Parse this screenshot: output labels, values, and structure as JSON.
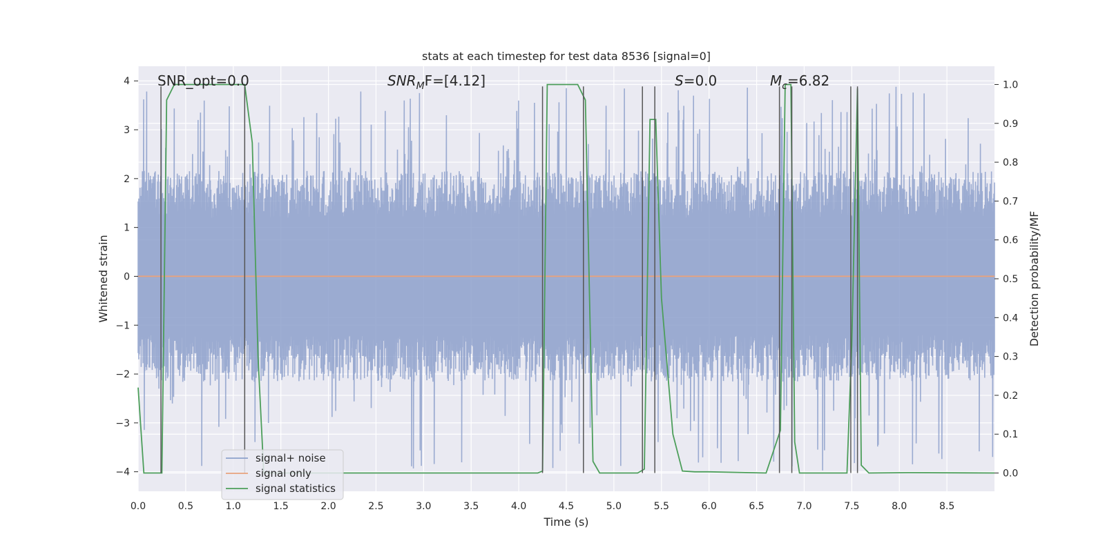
{
  "chart_data": {
    "type": "line",
    "title": "stats at each timestep for test data 8536 [signal=0]",
    "xlabel": "Time (s)",
    "ylabel": "Whitened strain",
    "y2label": "Detection probability/MF",
    "xlim": [
      0.0,
      9.0
    ],
    "ylim": [
      -4.4,
      4.3
    ],
    "y2lim": [
      -0.047,
      1.047
    ],
    "x_ticks": [
      0.0,
      0.5,
      1.0,
      1.5,
      2.0,
      2.5,
      3.0,
      3.5,
      4.0,
      4.5,
      5.0,
      5.5,
      6.0,
      6.5,
      7.0,
      7.5,
      8.0,
      8.5
    ],
    "x_tick_labels": [
      "0.0",
      "0.5",
      "1.0",
      "1.5",
      "2.0",
      "2.5",
      "3.0",
      "3.5",
      "4.0",
      "4.5",
      "5.0",
      "5.5",
      "6.0",
      "6.5",
      "7.0",
      "7.5",
      "8.0",
      "8.5"
    ],
    "y_ticks": [
      4,
      3,
      2,
      1,
      0,
      -1,
      -2,
      -3,
      -4
    ],
    "y_tick_labels": [
      "4",
      "3",
      "2",
      "1",
      "0",
      "−1",
      "−2",
      "−3",
      "−4"
    ],
    "y2_ticks": [
      1.0,
      0.9,
      0.8,
      0.7,
      0.6,
      0.5,
      0.4,
      0.3,
      0.2,
      0.1,
      0.0
    ],
    "y2_tick_labels": [
      "1.0",
      "0.9",
      "0.8",
      "0.7",
      "0.6",
      "0.5",
      "0.4",
      "0.3",
      "0.2",
      "0.1",
      "0.0"
    ],
    "annotations": {
      "snr_opt": "SNR_opt=0.0",
      "snr_mf": "F=[4.12]",
      "s_value": "=0.0",
      "mc_value": "=6.82"
    },
    "series": [
      {
        "name": "signal+ noise",
        "color": "#8da0cb",
        "axis": "left",
        "noise_band": {
          "bulk_amplitude": 1.6,
          "peak_amplitude": 3.9,
          "min_value": -4.0
        }
      },
      {
        "name": "signal only",
        "color": "#e8a27c",
        "axis": "left",
        "x": [
          0.0,
          9.0
        ],
        "y": [
          0.0,
          0.0
        ]
      },
      {
        "name": "signal statistics",
        "color": "#4c9e5a",
        "axis": "right",
        "x": [
          0.0,
          0.06,
          0.25,
          0.3,
          0.38,
          0.5,
          1.0,
          1.12,
          1.2,
          1.26,
          1.32,
          1.8,
          2.2,
          4.2,
          4.25,
          4.3,
          4.5,
          4.62,
          4.7,
          4.78,
          4.85,
          5.25,
          5.32,
          5.38,
          5.44,
          5.5,
          5.62,
          5.72,
          5.85,
          6.0,
          6.6,
          6.75,
          6.8,
          6.86,
          6.9,
          6.95,
          7.05,
          7.45,
          7.5,
          7.56,
          7.6,
          7.68,
          8.1,
          9.0
        ],
        "y": [
          0.22,
          0.0,
          0.0,
          0.96,
          1.0,
          1.0,
          1.0,
          1.0,
          0.85,
          0.3,
          0.0,
          0.0,
          0.0,
          0.0,
          0.005,
          1.0,
          1.0,
          1.0,
          0.96,
          0.03,
          0.0,
          0.0,
          0.01,
          0.91,
          0.91,
          0.45,
          0.1,
          0.005,
          0.003,
          0.003,
          0.0,
          0.11,
          1.0,
          1.0,
          0.08,
          0.0,
          0.0,
          0.0,
          0.33,
          0.99,
          0.02,
          0.0,
          0.001,
          0.0
        ]
      }
    ],
    "vertical_markers": [
      0.24,
      1.12,
      4.25,
      4.68,
      5.3,
      5.43,
      6.74,
      6.87,
      7.49,
      7.56
    ]
  },
  "legend": {
    "items": [
      {
        "label": "signal+ noise",
        "color": "#8da0cb"
      },
      {
        "label": "signal only",
        "color": "#e8a27c"
      },
      {
        "label": "signal statistics",
        "color": "#4c9e5a"
      }
    ]
  }
}
